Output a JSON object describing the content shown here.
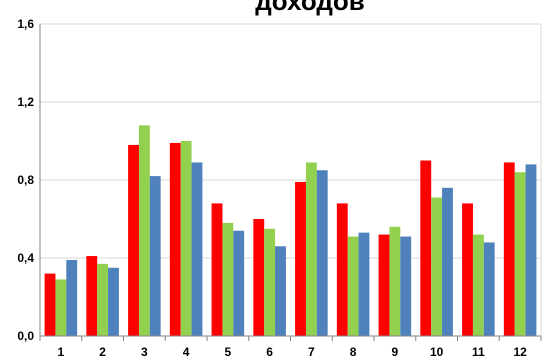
{
  "chart_data": {
    "type": "bar",
    "title": "доходов",
    "xlabel": "",
    "ylabel": "",
    "ylim": [
      0,
      1.6
    ],
    "yticks": [
      "0,0",
      "0,4",
      "0,8",
      "1,2",
      "1,6"
    ],
    "categories": [
      "1",
      "2",
      "3",
      "4",
      "5",
      "6",
      "7",
      "8",
      "9",
      "10",
      "11",
      "12"
    ],
    "grid": true,
    "legend": "none",
    "series": [
      {
        "color": "#ff0000",
        "values": [
          0.32,
          0.41,
          0.98,
          0.99,
          0.68,
          0.6,
          0.79,
          0.68,
          0.52,
          0.9,
          0.68,
          0.89
        ]
      },
      {
        "color": "#92d050",
        "values": [
          0.29,
          0.37,
          1.08,
          1.0,
          0.58,
          0.55,
          0.89,
          0.51,
          0.56,
          0.71,
          0.52,
          0.84
        ]
      },
      {
        "color": "#4f81bd",
        "values": [
          0.39,
          0.35,
          0.82,
          0.89,
          0.54,
          0.46,
          0.85,
          0.53,
          0.51,
          0.76,
          0.48,
          0.88
        ]
      }
    ]
  }
}
